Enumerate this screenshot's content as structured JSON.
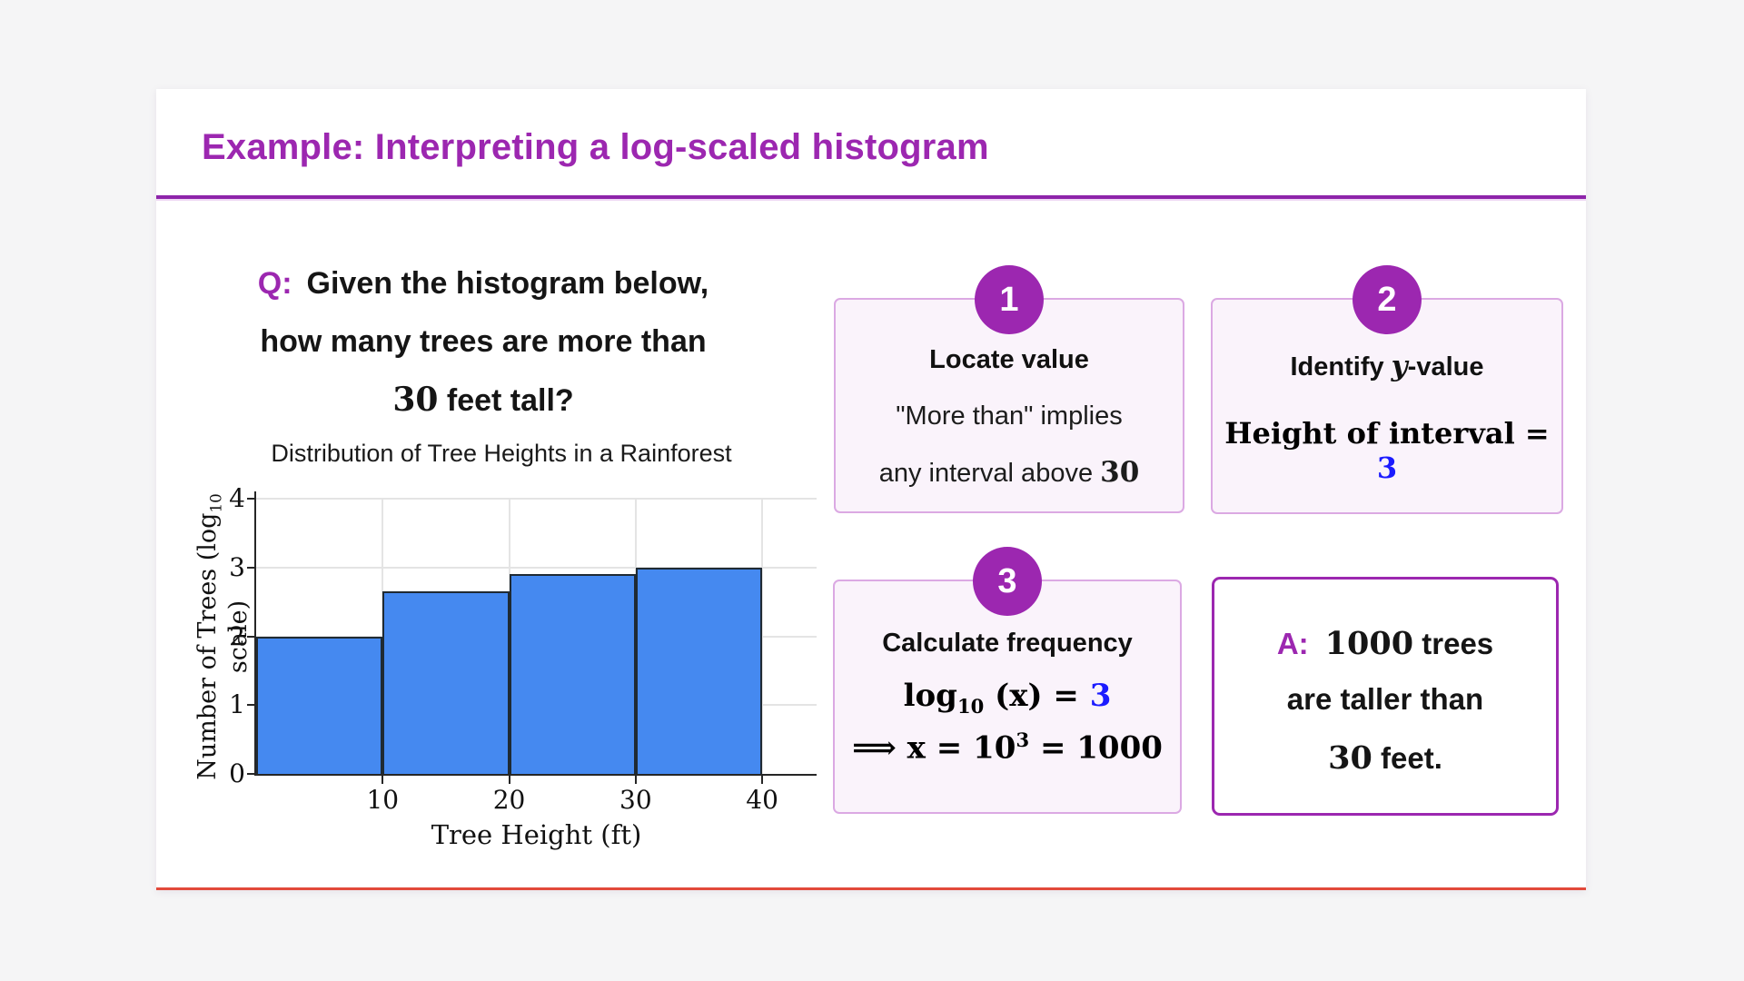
{
  "colors": {
    "accent_purple": "#9c27b0",
    "rule_purple": "#8e24aa",
    "math_blue": "#1b1bff",
    "bar_blue": "#4589f0",
    "bar_edge": "#1f2a33",
    "card_bg": "#faf3fb",
    "card_border": "#dba9e3",
    "answer_border": "#9c27b0",
    "bottom_line_red": "#e2493b",
    "page_bg": "#f5f5f6",
    "grid_gray": "#e4e4e4"
  },
  "header": {
    "title": "Example: Interpreting a log-scaled histogram"
  },
  "question": {
    "label": "Q:",
    "line1": "Given the histogram below,",
    "line2": "how many trees are more than",
    "line3_num": "30",
    "line3_rest": " feet tall?"
  },
  "chart_data": {
    "type": "bar",
    "title": "Distribution of Tree Heights in a Rainforest",
    "xlabel": "Tree Height (ft)",
    "ylabel_pre": "Number of Trees (log",
    "ylabel_sub": "10",
    "ylabel_post": " scale)",
    "categories": [
      "0-10",
      "10-20",
      "20-30",
      "30-40"
    ],
    "values": [
      2,
      2.65,
      2.9,
      3
    ],
    "bar_width_units": 10,
    "x_ticks": [
      "10",
      "20",
      "30",
      "40"
    ],
    "y_ticks": [
      "0",
      "1",
      "2",
      "3",
      "4"
    ],
    "xlim": [
      0,
      44.3
    ],
    "ylim": [
      0,
      4
    ],
    "grid": true,
    "legend": false
  },
  "steps": [
    {
      "number": "1",
      "title": "Locate value",
      "line1": "\"More than\" implies",
      "line2_pre": "any interval above ",
      "line2_num": "30"
    },
    {
      "number": "2",
      "title_pre": "Identify ",
      "title_math": "y",
      "title_post": "-value",
      "body_pre": "Height of interval = ",
      "body_num": "3"
    },
    {
      "number": "3",
      "title": "Calculate frequency",
      "math1_fn": "log",
      "math1_sub": "10",
      "math1_mid": " (x) = ",
      "math1_val": "3",
      "math2_arrow": "⟹",
      "math2_body": " x = 10",
      "math2_exp": "3",
      "math2_tail": " = 1000"
    }
  ],
  "answer": {
    "label": "A:",
    "line1_num": "1000",
    "line1_rest": " trees",
    "line2": "are taller than",
    "line3_num": "30",
    "line3_rest": " feet."
  }
}
